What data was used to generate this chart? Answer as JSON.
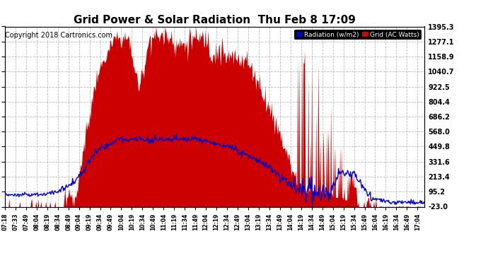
{
  "title": "Grid Power & Solar Radiation  Thu Feb 8 17:09",
  "copyright": "Copyright 2018 Cartronics.com",
  "legend_radiation": "Radiation (w/m2)",
  "legend_grid": "Grid (AC Watts)",
  "yticks": [
    1395.3,
    1277.1,
    1158.9,
    1040.7,
    922.5,
    804.4,
    686.2,
    568.0,
    449.8,
    331.6,
    213.4,
    95.2,
    -23.0
  ],
  "ylim": [
    -23.0,
    1395.3
  ],
  "background_color": "#ffffff",
  "plot_bg_color": "#ffffff",
  "grid_color": "#aaaaaa",
  "radiation_color": "#0000cc",
  "grid_power_color": "#cc0000",
  "title_fontsize": 11,
  "copyright_fontsize": 7,
  "x_tick_labels": [
    "07:18",
    "07:33",
    "07:49",
    "08:04",
    "08:19",
    "08:34",
    "08:49",
    "09:04",
    "09:19",
    "09:34",
    "09:49",
    "10:04",
    "10:19",
    "10:34",
    "10:49",
    "11:04",
    "11:19",
    "11:34",
    "11:49",
    "12:04",
    "12:19",
    "12:34",
    "12:49",
    "13:04",
    "13:19",
    "13:34",
    "13:49",
    "14:04",
    "14:19",
    "14:34",
    "14:49",
    "15:04",
    "15:19",
    "15:34",
    "15:49",
    "16:04",
    "16:19",
    "16:34",
    "16:49",
    "17:04"
  ]
}
